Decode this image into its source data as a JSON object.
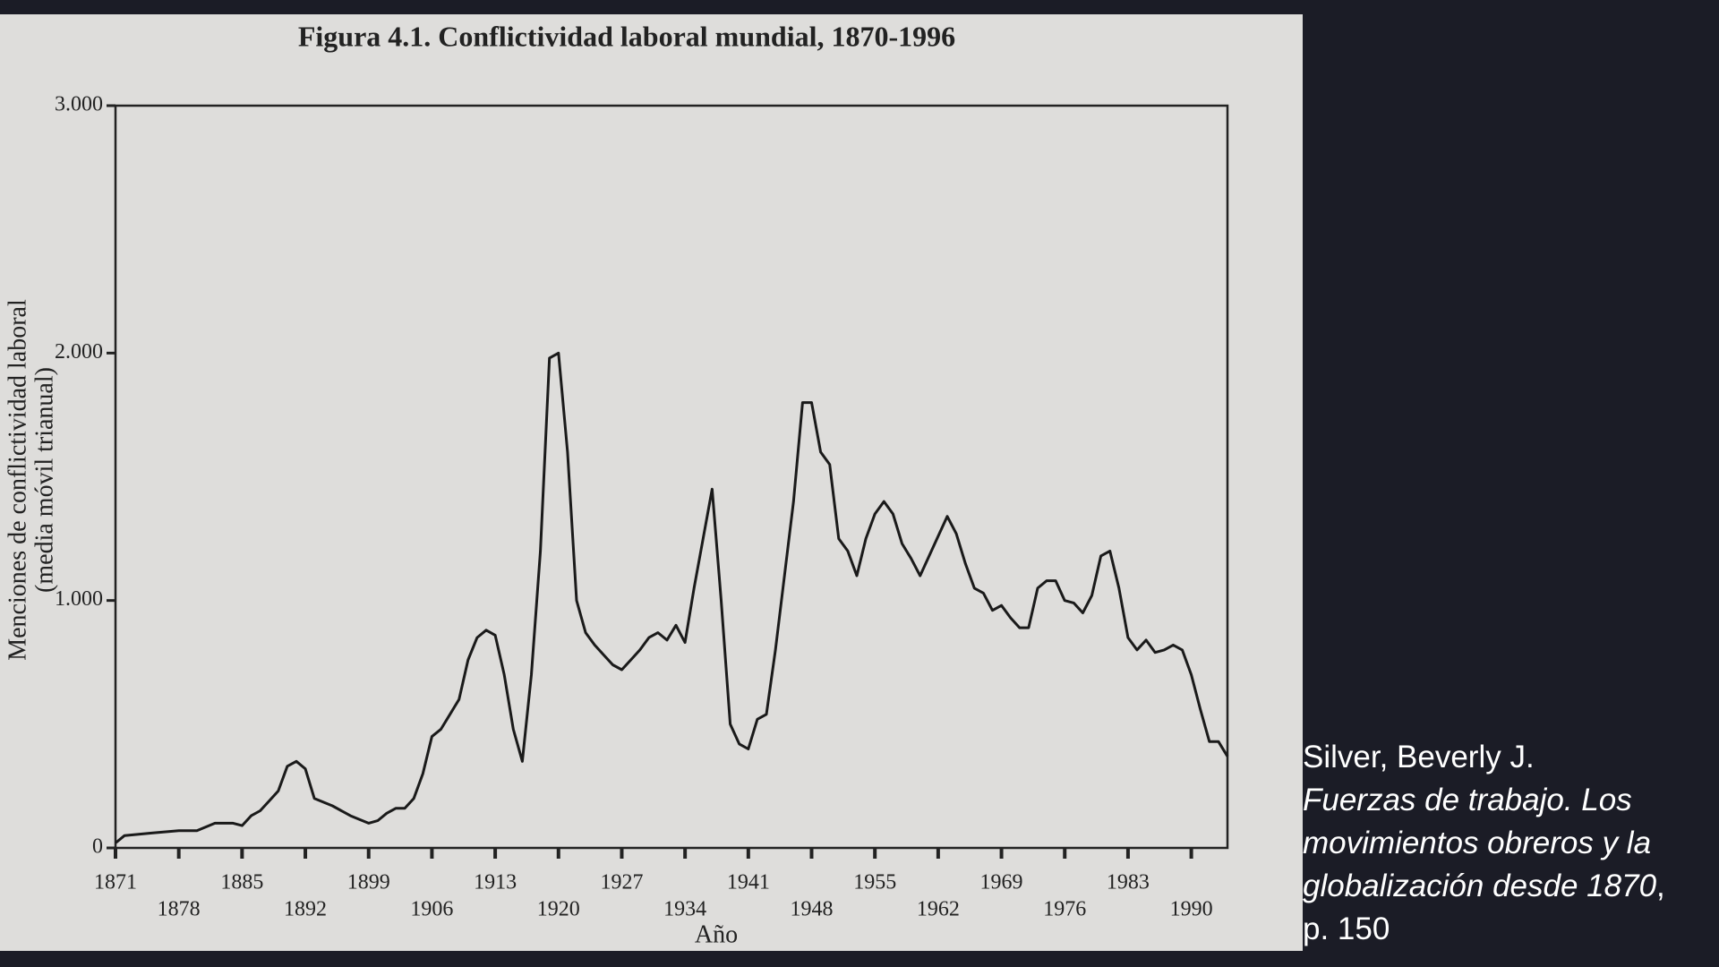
{
  "chart_data": {
    "type": "line",
    "title": "Figura 4.1. Conflictividad laboral mundial, 1870-1996",
    "ylabel": [
      "Menciones de conflictividad laboral",
      "(media móvil trianual)"
    ],
    "xlabel": "Año",
    "x": [
      1871,
      1872,
      1875,
      1878,
      1880,
      1882,
      1884,
      1885,
      1886,
      1887,
      1888,
      1889,
      1890,
      1891,
      1892,
      1893,
      1895,
      1897,
      1899,
      1900,
      1901,
      1902,
      1903,
      1904,
      1905,
      1906,
      1907,
      1908,
      1909,
      1910,
      1911,
      1912,
      1913,
      1914,
      1915,
      1916,
      1917,
      1918,
      1919,
      1920,
      1921,
      1922,
      1923,
      1924,
      1925,
      1926,
      1927,
      1928,
      1929,
      1930,
      1931,
      1932,
      1933,
      1934,
      1935,
      1936,
      1937,
      1938,
      1939,
      1940,
      1941,
      1942,
      1943,
      1944,
      1945,
      1946,
      1947,
      1948,
      1949,
      1950,
      1951,
      1952,
      1953,
      1954,
      1955,
      1956,
      1957,
      1958,
      1959,
      1960,
      1961,
      1962,
      1963,
      1964,
      1965,
      1966,
      1967,
      1968,
      1969,
      1970,
      1971,
      1972,
      1973,
      1974,
      1975,
      1976,
      1977,
      1978,
      1979,
      1980,
      1981,
      1982,
      1983,
      1984,
      1985,
      1986,
      1987,
      1988,
      1989,
      1990,
      1991,
      1992,
      1993,
      1994
    ],
    "series": [
      {
        "name": "Conflictividad laboral",
        "color": "#1a1a1a",
        "values": [
          20,
          50,
          60,
          70,
          70,
          100,
          100,
          90,
          130,
          150,
          190,
          230,
          330,
          350,
          320,
          200,
          170,
          130,
          100,
          110,
          140,
          160,
          160,
          200,
          300,
          450,
          480,
          540,
          600,
          760,
          850,
          880,
          860,
          700,
          480,
          350,
          700,
          1200,
          1980,
          2000,
          1600,
          1000,
          870,
          820,
          780,
          740,
          720,
          760,
          800,
          850,
          870,
          840,
          900,
          830,
          1050,
          1250,
          1450,
          1000,
          500,
          420,
          400,
          520,
          540,
          800,
          1100,
          1400,
          1800,
          1800,
          1600,
          1550,
          1250,
          1200,
          1100,
          1250,
          1350,
          1400,
          1350,
          1230,
          1170,
          1100,
          1180,
          1260,
          1340,
          1270,
          1150,
          1050,
          1030,
          960,
          980,
          930,
          890,
          890,
          1050,
          1080,
          1080,
          1000,
          990,
          950,
          1020,
          1180,
          1200,
          1050,
          850,
          800,
          840,
          790,
          800,
          820,
          800,
          700,
          560,
          430,
          430,
          370
        ]
      }
    ],
    "xlim": [
      1871,
      1994
    ],
    "xticks": [
      1871,
      1878,
      1885,
      1892,
      1899,
      1906,
      1913,
      1920,
      1927,
      1934,
      1941,
      1948,
      1955,
      1962,
      1969,
      1976,
      1983,
      1990
    ],
    "ylim": [
      0,
      3000
    ],
    "yticks": [
      0,
      {
        "value": 1000,
        "label": "1.000"
      },
      {
        "value": 2000,
        "label": "2.000"
      },
      {
        "value": 3000,
        "label": "3.000"
      }
    ],
    "grid": false
  },
  "citation": {
    "author": "Silver, Beverly J.",
    "title": "Fuerzas de trabajo. Los movimientos obreros y la globalización desde 1870",
    "page": ", p. 150"
  }
}
